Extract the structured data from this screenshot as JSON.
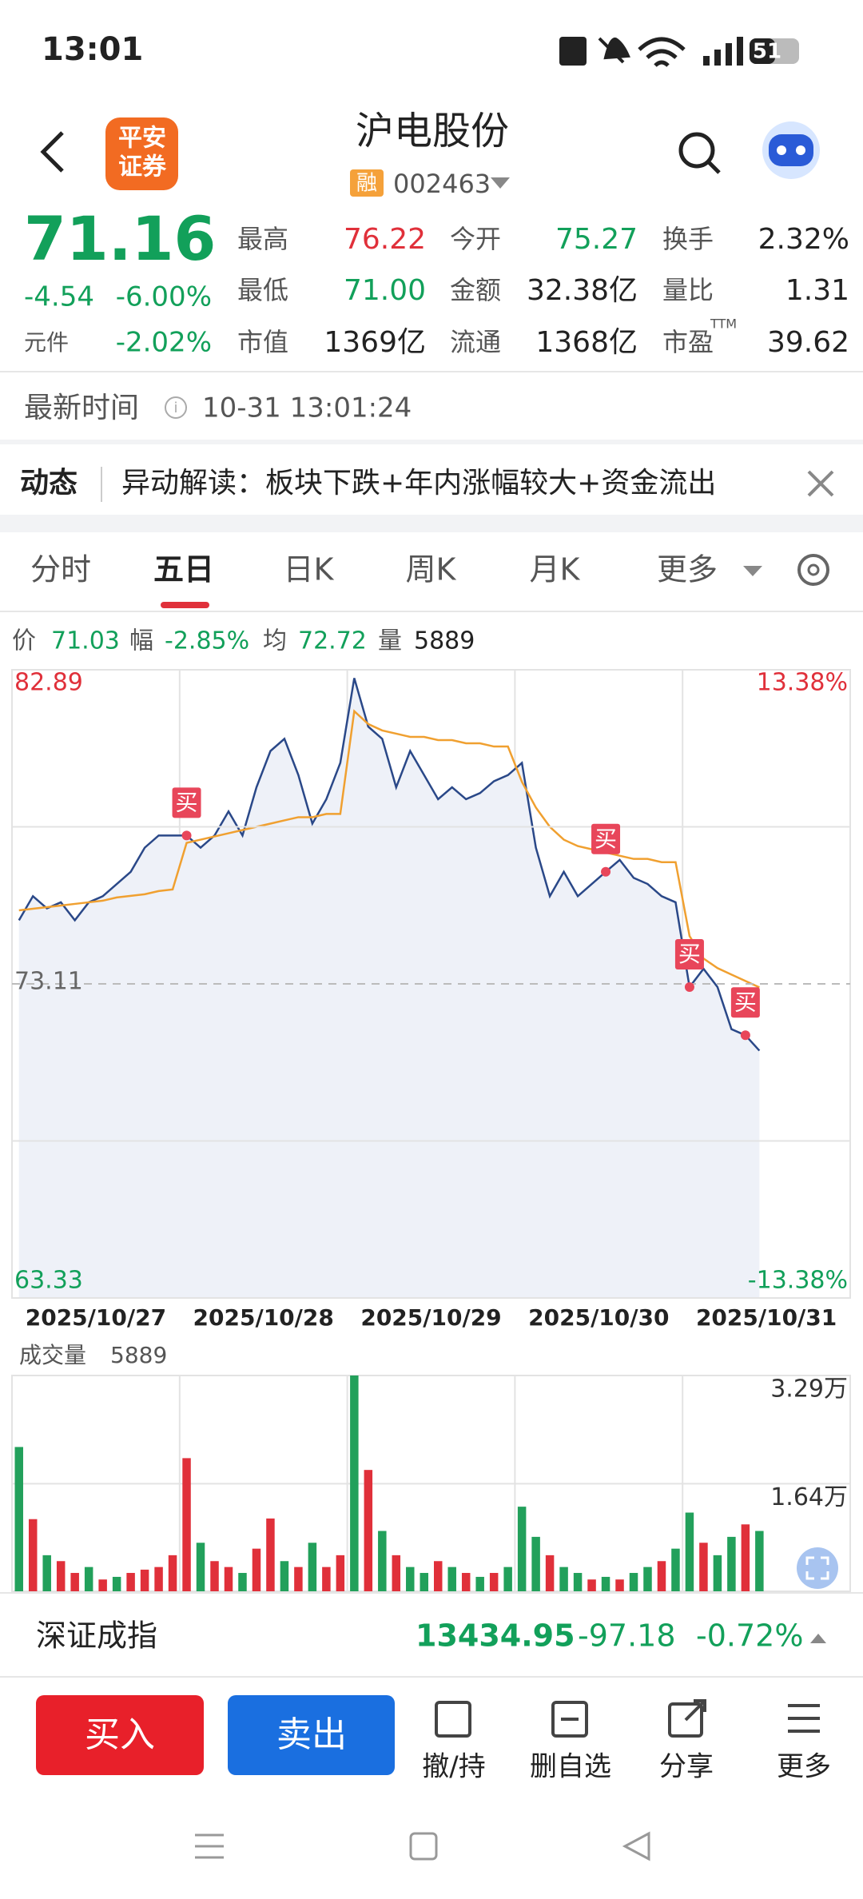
{
  "status_bar": {
    "time": "13:01",
    "battery": "51"
  },
  "header": {
    "logo": [
      "平安",
      "证券"
    ],
    "title": "沪电股份",
    "badge": "融",
    "code": "002463"
  },
  "quote": {
    "price": "71.16",
    "change": "-4.54",
    "change_pct": "-6.00%",
    "per_unit_label": "元件",
    "per_unit_value": "-2.02%",
    "stats": [
      {
        "label": "最高",
        "value": "76.22",
        "color": "#e0303a"
      },
      {
        "label": "今开",
        "value": "75.27",
        "color": "#12a05a"
      },
      {
        "label": "换手",
        "value": "2.32%",
        "color": "#222222"
      },
      {
        "label": "最低",
        "value": "71.00",
        "color": "#12a05a"
      },
      {
        "label": "金额",
        "value": "32.38亿",
        "color": "#222222"
      },
      {
        "label": "量比",
        "value": "1.31",
        "color": "#222222"
      },
      {
        "label": "市值",
        "value": "1369亿",
        "color": "#222222"
      },
      {
        "label": "流通",
        "value": "1368亿",
        "color": "#222222"
      },
      {
        "label": "市盈",
        "sup": "TTM",
        "value": "39.62",
        "color": "#222222"
      }
    ]
  },
  "update_time": {
    "label": "最新时间",
    "value": "10-31 13:01:24"
  },
  "news": {
    "label": "动态",
    "text": "异动解读：板块下跌+年内涨幅较大+资金流出"
  },
  "tabs": [
    "分时",
    "五日",
    "日K",
    "周K",
    "月K",
    "更多"
  ],
  "chart_info": [
    {
      "label": "价",
      "value": "71.03"
    },
    {
      "label": "幅",
      "value": "-2.85%"
    },
    {
      "label": "均",
      "value": "72.72"
    },
    {
      "label": "量",
      "value": "5889"
    }
  ],
  "chart_data": [
    {
      "type": "line",
      "categories": [
        "2025/10/27",
        "2025/10/28",
        "2025/10/29",
        "2025/10/30",
        "2025/10/31"
      ],
      "ylim": [
        63.33,
        82.89
      ],
      "yticks": [
        82.89,
        {
          "value": 78,
          "label": null
        },
        73.11,
        {
          "value": 68.22,
          "label": null
        },
        63.33
      ],
      "y2lim": [
        -13.38,
        13.38
      ],
      "y2ticks": [
        {
          "value": 13.38,
          "label": "13.38%"
        },
        {
          "value": -13.38,
          "label": "-13.38%"
        }
      ],
      "grid": true,
      "series": [
        {
          "color": "#2a4888",
          "values": [
            [
              75.09,
              75.84,
              75.46,
              75.65,
              75.09,
              75.65,
              75.84,
              76.22,
              76.6,
              77.35,
              77.73,
              77.73
            ],
            [
              77.73,
              77.35,
              77.73,
              78.48,
              77.73,
              79.23,
              80.36,
              80.74,
              79.61,
              78.1,
              78.86,
              79.99
            ],
            [
              82.63,
              81.12,
              80.74,
              79.23,
              80.36,
              79.61,
              78.86,
              79.23,
              78.86,
              79.05,
              79.42,
              79.61
            ],
            [
              79.99,
              77.35,
              75.84,
              76.6,
              75.84,
              76.22,
              76.6,
              76.97,
              76.41,
              76.22,
              75.84,
              75.65
            ],
            [
              73.01,
              73.58,
              73.01,
              71.7,
              71.51,
              71.03,
              null,
              null,
              null,
              null,
              null,
              null
            ]
          ]
        },
        {
          "color": "#f0a030",
          "values": [
            [
              75.4,
              75.45,
              75.5,
              75.55,
              75.6,
              75.65,
              75.7,
              75.8,
              75.85,
              75.9,
              76.0,
              76.05
            ],
            [
              77.5,
              77.6,
              77.7,
              77.8,
              77.9,
              78.0,
              78.1,
              78.2,
              78.3,
              78.3,
              78.4,
              78.4
            ],
            [
              81.6,
              81.2,
              81.0,
              80.9,
              80.8,
              80.8,
              80.7,
              80.7,
              80.6,
              80.6,
              80.5,
              80.5
            ],
            [
              79.4,
              78.6,
              78.0,
              77.6,
              77.4,
              77.3,
              77.2,
              77.1,
              77.0,
              77.0,
              76.9,
              76.9
            ],
            [
              74.6,
              73.9,
              73.6,
              73.4,
              73.2,
              73.0,
              null,
              null,
              null,
              null,
              null,
              null
            ]
          ]
        }
      ],
      "annotations": [
        {
          "text": "买",
          "day": 1,
          "slot": 0
        },
        {
          "text": "买",
          "day": 3,
          "slot": 6
        },
        {
          "text": "买",
          "day": 4,
          "slot": 0
        },
        {
          "text": "买",
          "day": 4,
          "slot": 4
        }
      ]
    },
    {
      "type": "bar",
      "title": "成交量",
      "subtitle": "5889",
      "ylim": [
        0,
        32900
      ],
      "yticks": [
        {
          "value": 32900,
          "label": "3.29万"
        },
        {
          "value": 16400,
          "label": "1.64万"
        }
      ],
      "values": [
        [
          22000,
          11000,
          5500,
          4600,
          2800,
          3700,
          1800,
          2200,
          2800,
          3300,
          3700,
          5500
        ],
        [
          20300,
          7400,
          4600,
          3700,
          2800,
          6500,
          11100,
          4600,
          3700,
          7400,
          3700,
          5500
        ],
        [
          32900,
          18500,
          9200,
          5500,
          3700,
          2800,
          4600,
          3700,
          2800,
          2200,
          2800,
          3700
        ],
        [
          12900,
          8300,
          5500,
          3700,
          2800,
          1800,
          2200,
          1800,
          2800,
          3700,
          4600,
          6500
        ],
        [
          12000,
          7400,
          5500,
          8300,
          10200,
          9200,
          null,
          null,
          null,
          null,
          null,
          null
        ]
      ],
      "colors": [
        [
          "#22a05b",
          "#e0303a",
          "#22a05b",
          "#e0303a",
          "#e0303a",
          "#22a05b",
          "#e0303a",
          "#22a05b",
          "#e0303a",
          "#e0303a",
          "#e0303a",
          "#e0303a"
        ],
        [
          "#e0303a",
          "#22a05b",
          "#e0303a",
          "#e0303a",
          "#22a05b",
          "#e0303a",
          "#e0303a",
          "#22a05b",
          "#e0303a",
          "#22a05b",
          "#e0303a",
          "#e0303a"
        ],
        [
          "#22a05b",
          "#e0303a",
          "#22a05b",
          "#e0303a",
          "#22a05b",
          "#22a05b",
          "#e0303a",
          "#22a05b",
          "#e0303a",
          "#22a05b",
          "#e0303a",
          "#22a05b"
        ],
        [
          "#22a05b",
          "#22a05b",
          "#e0303a",
          "#22a05b",
          "#22a05b",
          "#e0303a",
          "#22a05b",
          "#e0303a",
          "#22a05b",
          "#22a05b",
          "#e0303a",
          "#22a05b"
        ],
        [
          "#22a05b",
          "#e0303a",
          "#22a05b",
          "#22a05b",
          "#e0303a",
          "#22a05b",
          null,
          null,
          null,
          null,
          null,
          null
        ]
      ]
    }
  ],
  "index_bar": {
    "name": "深证成指",
    "value": "13434.95",
    "change": "-97.18",
    "change_pct": "-0.72%"
  },
  "actions": {
    "buy": "买入",
    "sell": "卖出",
    "items": [
      "撤/持",
      "删自选",
      "分享",
      "更多"
    ]
  }
}
